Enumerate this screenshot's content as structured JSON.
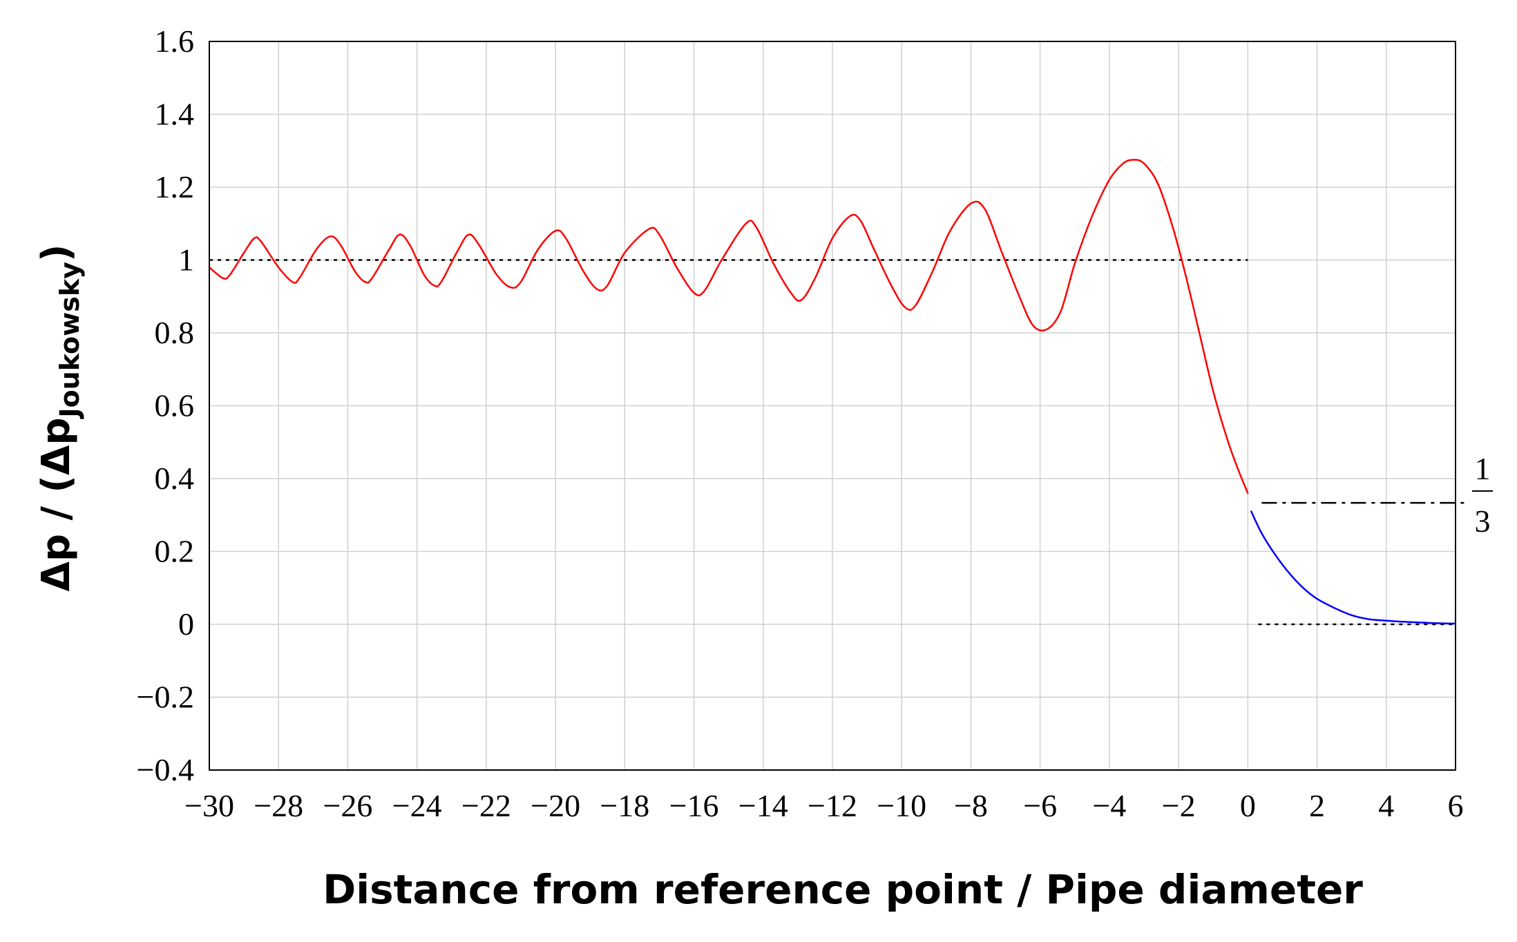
{
  "chart_data": {
    "type": "line",
    "title": "",
    "xlabel": "Distance from reference point / Pipe diameter",
    "ylabel": {
      "main": "Δp / (Δp",
      "subscript": "Joukowsky",
      "close": ")"
    },
    "xlim": [
      -30,
      6
    ],
    "ylim": [
      -0.4,
      1.6
    ],
    "grid": true,
    "legend": "none",
    "x_ticks": [
      -30,
      -28,
      -26,
      -24,
      -22,
      -20,
      -18,
      -16,
      -14,
      -12,
      -10,
      -8,
      -6,
      -4,
      -2,
      0,
      2,
      4,
      6
    ],
    "x_tick_labels": [
      "−30",
      "−28",
      "−26",
      "−24",
      "−22",
      "−20",
      "−18",
      "−16",
      "−14",
      "−12",
      "−10",
      "−8",
      "−6",
      "−4",
      "−2",
      "0",
      "2",
      "4",
      "6"
    ],
    "y_ticks": [
      -0.4,
      -0.2,
      0,
      0.2,
      0.4,
      0.6,
      0.8,
      1,
      1.2,
      1.4,
      1.6
    ],
    "y_tick_labels": [
      "−0.4",
      "−0.2",
      "0",
      "0.2",
      "0.4",
      "0.6",
      "0.8",
      "1",
      "1.2",
      "1.4",
      "1.6"
    ],
    "series": [
      {
        "color": "#ff0000",
        "points": [
          [
            -30,
            0.98
          ],
          [
            -29.6,
            0.95
          ],
          [
            -29.4,
            0.96
          ],
          [
            -29.0,
            1.02
          ],
          [
            -28.7,
            1.06
          ],
          [
            -28.5,
            1.05
          ],
          [
            -28.0,
            0.98
          ],
          [
            -27.6,
            0.94
          ],
          [
            -27.4,
            0.95
          ],
          [
            -26.9,
            1.03
          ],
          [
            -26.5,
            1.065
          ],
          [
            -26.2,
            1.04
          ],
          [
            -25.8,
            0.97
          ],
          [
            -25.5,
            0.94
          ],
          [
            -25.3,
            0.95
          ],
          [
            -24.8,
            1.03
          ],
          [
            -24.5,
            1.07
          ],
          [
            -24.2,
            1.04
          ],
          [
            -23.8,
            0.96
          ],
          [
            -23.5,
            0.93
          ],
          [
            -23.3,
            0.94
          ],
          [
            -22.8,
            1.03
          ],
          [
            -22.5,
            1.07
          ],
          [
            -22.2,
            1.04
          ],
          [
            -21.7,
            0.96
          ],
          [
            -21.3,
            0.925
          ],
          [
            -21.0,
            0.94
          ],
          [
            -20.5,
            1.03
          ],
          [
            -20.0,
            1.08
          ],
          [
            -19.7,
            1.06
          ],
          [
            -19.2,
            0.97
          ],
          [
            -18.8,
            0.92
          ],
          [
            -18.5,
            0.93
          ],
          [
            -18.0,
            1.02
          ],
          [
            -17.3,
            1.085
          ],
          [
            -17.0,
            1.07
          ],
          [
            -16.5,
            0.98
          ],
          [
            -16.0,
            0.91
          ],
          [
            -15.7,
            0.915
          ],
          [
            -15.2,
            1.0
          ],
          [
            -14.5,
            1.1
          ],
          [
            -14.2,
            1.09
          ],
          [
            -13.7,
            0.99
          ],
          [
            -13.2,
            0.91
          ],
          [
            -12.9,
            0.89
          ],
          [
            -12.5,
            0.95
          ],
          [
            -12.0,
            1.06
          ],
          [
            -11.5,
            1.12
          ],
          [
            -11.2,
            1.11
          ],
          [
            -10.8,
            1.03
          ],
          [
            -10.3,
            0.93
          ],
          [
            -9.9,
            0.87
          ],
          [
            -9.6,
            0.875
          ],
          [
            -9.1,
            0.97
          ],
          [
            -8.6,
            1.08
          ],
          [
            -8.0,
            1.155
          ],
          [
            -7.6,
            1.14
          ],
          [
            -7.1,
            1.02
          ],
          [
            -6.6,
            0.9
          ],
          [
            -6.2,
            0.82
          ],
          [
            -5.8,
            0.81
          ],
          [
            -5.4,
            0.86
          ],
          [
            -5.0,
            0.99
          ],
          [
            -4.5,
            1.12
          ],
          [
            -4.0,
            1.22
          ],
          [
            -3.6,
            1.265
          ],
          [
            -3.3,
            1.275
          ],
          [
            -3.0,
            1.265
          ],
          [
            -2.6,
            1.21
          ],
          [
            -2.2,
            1.1
          ],
          [
            -1.8,
            0.96
          ],
          [
            -1.4,
            0.8
          ],
          [
            -1.0,
            0.64
          ],
          [
            -0.6,
            0.51
          ],
          [
            -0.3,
            0.43
          ],
          [
            0.0,
            0.36
          ]
        ]
      },
      {
        "color": "#0000ff",
        "points": [
          [
            0.1,
            0.31
          ],
          [
            0.4,
            0.25
          ],
          [
            0.8,
            0.19
          ],
          [
            1.2,
            0.14
          ],
          [
            1.6,
            0.1
          ],
          [
            2.0,
            0.07
          ],
          [
            2.5,
            0.045
          ],
          [
            3.0,
            0.025
          ],
          [
            3.5,
            0.014
          ],
          [
            4.0,
            0.01
          ],
          [
            4.5,
            0.007
          ],
          [
            5.0,
            0.005
          ],
          [
            5.5,
            0.003
          ],
          [
            6.0,
            0.002
          ]
        ]
      }
    ],
    "reference_lines": [
      {
        "y": 1,
        "x_from": -30,
        "x_to": 0,
        "style": "dotted"
      },
      {
        "y": 0,
        "x_from": 0.3,
        "x_to": 6,
        "style": "dotted"
      },
      {
        "y": 0.3333,
        "x_from": 0.4,
        "x_to": 6.4,
        "style": "dash-dot"
      }
    ],
    "annotation": {
      "numerator": "1",
      "denominator": "3"
    }
  }
}
